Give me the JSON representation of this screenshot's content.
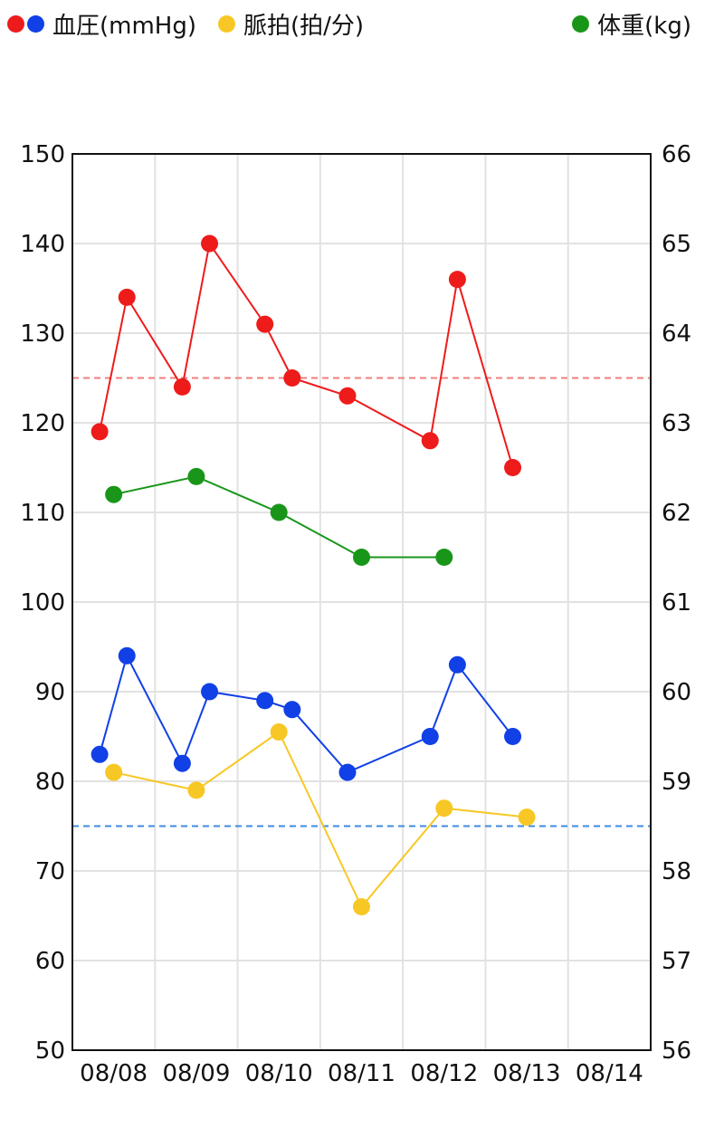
{
  "legend": {
    "bp_label": "血圧(mmHg)",
    "pulse_label": "脈拍(拍/分)",
    "weight_label": "体重(kg)"
  },
  "colors": {
    "systolic": "#ee1b1b",
    "diastolic": "#1140e6",
    "pulse": "#f7c825",
    "weight": "#199619",
    "systolic_target": "#f07d7d",
    "diastolic_target": "#3c8be0"
  },
  "chart_data": {
    "type": "line",
    "x_ticks": [
      "08/08",
      "08/09",
      "08/10",
      "08/11",
      "08/12",
      "08/13",
      "08/14"
    ],
    "left_axis": {
      "ylim": [
        50,
        150
      ],
      "ticks": [
        50,
        60,
        70,
        80,
        90,
        100,
        110,
        120,
        130,
        140,
        150
      ]
    },
    "right_axis": {
      "ylim": [
        56,
        66
      ],
      "ticks": [
        56,
        57,
        58,
        59,
        60,
        61,
        62,
        63,
        64,
        65,
        66
      ]
    },
    "grid": true,
    "series": [
      {
        "name": "systolic",
        "axis": "left",
        "x": [
          0.33,
          0.66,
          1.33,
          1.66,
          2.33,
          2.66,
          3.33,
          4.33,
          4.66,
          5.33
        ],
        "y": [
          119,
          134,
          124,
          140,
          131,
          125,
          123,
          118,
          136,
          115
        ]
      },
      {
        "name": "diastolic",
        "axis": "left",
        "x": [
          0.33,
          0.66,
          1.33,
          1.66,
          2.33,
          2.66,
          3.33,
          4.33,
          4.66,
          5.33
        ],
        "y": [
          83,
          94,
          82,
          90,
          89,
          88,
          81,
          85,
          93,
          85
        ]
      },
      {
        "name": "pulse",
        "axis": "left",
        "x": [
          0.5,
          1.5,
          2.5,
          3.5,
          4.5,
          5.5
        ],
        "y": [
          81,
          79,
          85.5,
          66,
          77,
          76
        ]
      },
      {
        "name": "weight",
        "axis": "right",
        "x": [
          0.5,
          1.5,
          2.5,
          3.5,
          4.5
        ],
        "y": [
          62.2,
          62.4,
          62.0,
          61.5,
          61.5
        ]
      }
    ],
    "reference_lines": [
      {
        "axis": "left",
        "y": 125,
        "style": "dashed",
        "color": "#f07d7d"
      },
      {
        "axis": "left",
        "y": 75,
        "style": "dashed",
        "color": "#3c8be0"
      }
    ]
  }
}
